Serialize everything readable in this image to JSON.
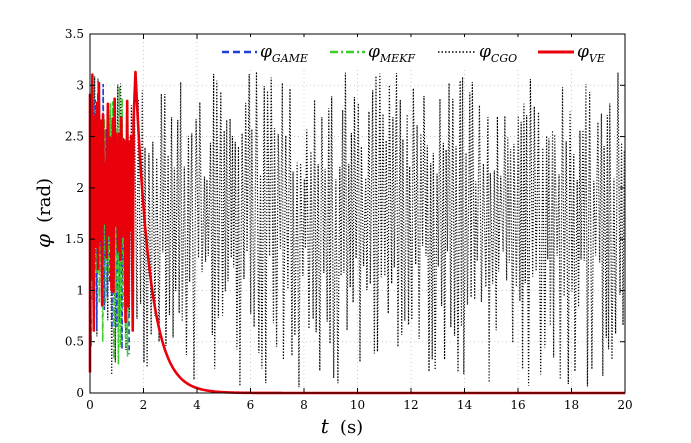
{
  "chart_data": {
    "type": "line",
    "title": "",
    "xlabel": {
      "symbol": "t",
      "unit": "(s)"
    },
    "ylabel": {
      "symbol": "φ",
      "unit": "(rad)"
    },
    "xlim": [
      0,
      20
    ],
    "ylim": [
      0,
      3.5
    ],
    "xticks": [
      0,
      2,
      4,
      6,
      8,
      10,
      12,
      14,
      16,
      18,
      20
    ],
    "yticks": [
      0,
      0.5,
      1,
      1.5,
      2,
      2.5,
      3,
      3.5
    ],
    "grid": true,
    "legend_position": "top-right",
    "series": [
      {
        "name": "φGAME",
        "symbol": "φ",
        "subscript": "GAME",
        "color": "#1f3fd6",
        "style": "dashed",
        "description": "oscillates between about 0.2 and 3.05 rad until t≈1.5 s, then overlaps the red curve"
      },
      {
        "name": "φMEKF",
        "symbol": "φ",
        "subscript": "MEKF",
        "color": "#3ccc2c",
        "style": "dashdot",
        "description": "oscillates between about 0.2 and 3.0 rad until t≈1.5 s, then overlaps the red curve"
      },
      {
        "name": "φCGO",
        "symbol": "φ",
        "subscript": "CGO",
        "color": "#000000",
        "style": "dotted",
        "description": "fast oscillation between ~0.05 and ~3.14 rad over the whole 0–20 s window"
      },
      {
        "name": "φVE",
        "symbol": "φ",
        "subscript": "VE",
        "color": "#e8000b",
        "style": "solid",
        "description": "oscillates 0.2–3.14 rad until t≈1.7 s, then decays exponentially to ~0 by t≈4.5 s",
        "decay": {
          "start_time": 1.7,
          "start_value": 3.13,
          "time_constant": 0.55
        }
      }
    ]
  }
}
